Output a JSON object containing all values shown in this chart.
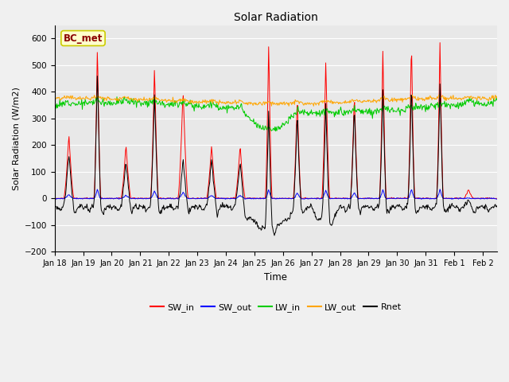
{
  "title": "Solar Radiation",
  "xlabel": "Time",
  "ylabel": "Solar Radiation (W/m2)",
  "ylim": [
    -200,
    650
  ],
  "yticks": [
    -200,
    -100,
    0,
    100,
    200,
    300,
    400,
    500,
    600
  ],
  "xlim": [
    0,
    15.5
  ],
  "xtick_labels": [
    "Jan 18",
    "Jan 19",
    "Jan 20",
    "Jan 21",
    "Jan 22",
    "Jan 23",
    "Jan 24",
    "Jan 25",
    "Jan 26",
    "Jan 27",
    "Jan 28",
    "Jan 29",
    "Jan 30",
    "Jan 31",
    "Feb 1",
    "Feb 2"
  ],
  "station_label": "BC_met",
  "plot_bg_color": "#e8e8e8",
  "fig_bg_color": "#f0f0f0",
  "line_colors": {
    "SW_in": "#ff0000",
    "SW_out": "#0000ff",
    "LW_in": "#00cc00",
    "LW_out": "#ffa500",
    "Rnet": "#000000"
  },
  "legend_entries": [
    "SW_in",
    "SW_out",
    "LW_in",
    "LW_out",
    "Rnet"
  ],
  "SW_in_peaks": [
    240,
    580,
    200,
    500,
    410,
    200,
    200,
    590,
    380,
    520,
    395,
    560,
    600,
    590,
    35,
    0
  ],
  "SW_in_widths": [
    0.18,
    0.12,
    0.18,
    0.14,
    0.18,
    0.18,
    0.18,
    0.12,
    0.14,
    0.14,
    0.14,
    0.12,
    0.12,
    0.12,
    0.18,
    0.18
  ],
  "SW_out_scale": 0.06,
  "LW_in_base": 340,
  "LW_out_base": 365,
  "Rnet_night_base": -30,
  "Rnet_day_peaks": [
    200,
    520,
    175,
    430,
    185,
    180,
    175,
    450,
    350,
    450,
    380,
    450,
    465,
    465,
    30,
    0
  ]
}
